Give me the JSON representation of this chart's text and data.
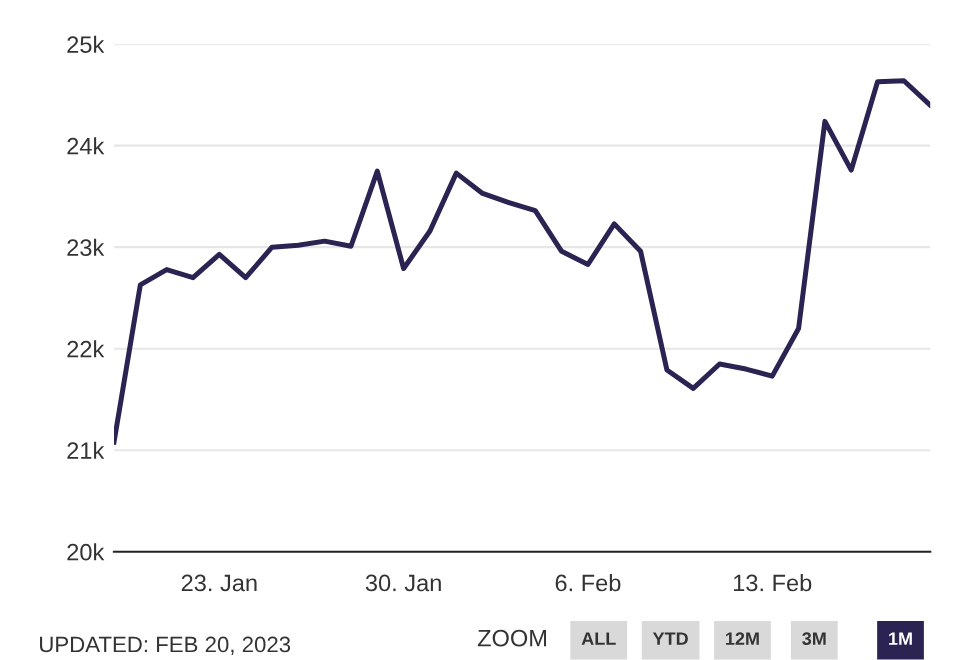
{
  "chart_data": {
    "type": "line",
    "x": [
      "2023-01-19",
      "2023-01-20",
      "2023-01-21",
      "2023-01-22",
      "2023-01-23",
      "2023-01-24",
      "2023-01-25",
      "2023-01-26",
      "2023-01-27",
      "2023-01-28",
      "2023-01-29",
      "2023-01-30",
      "2023-01-31",
      "2023-02-01",
      "2023-02-02",
      "2023-02-03",
      "2023-02-04",
      "2023-02-05",
      "2023-02-06",
      "2023-02-07",
      "2023-02-08",
      "2023-02-09",
      "2023-02-10",
      "2023-02-11",
      "2023-02-12",
      "2023-02-13",
      "2023-02-14",
      "2023-02-15",
      "2023-02-16",
      "2023-02-17",
      "2023-02-18",
      "2023-02-19"
    ],
    "series": [
      {
        "color": "#2b2452",
        "values": [
          21.08,
          22.63,
          22.78,
          22.7,
          22.93,
          22.7,
          23.0,
          23.02,
          23.06,
          23.01,
          23.75,
          22.79,
          23.16,
          23.73,
          23.53,
          23.44,
          23.36,
          22.96,
          22.83,
          23.23,
          22.96,
          21.79,
          21.61,
          21.85,
          21.8,
          21.73,
          22.2,
          24.24,
          23.76,
          24.63,
          24.64,
          24.4
        ]
      }
    ],
    "xlim": [
      "2023-01-19",
      "2023-02-19"
    ],
    "xticks": [
      {
        "value": "2023-01-23",
        "label": "23. Jan"
      },
      {
        "value": "2023-01-30",
        "label": "30. Jan"
      },
      {
        "value": "2023-02-06",
        "label": "6. Feb"
      },
      {
        "value": "2023-02-13",
        "label": "13. Feb"
      }
    ],
    "ylim": [
      20,
      25
    ],
    "yticks": [
      {
        "value": 20,
        "label": "20k"
      },
      {
        "value": 21,
        "label": "21k"
      },
      {
        "value": 22,
        "label": "22k"
      },
      {
        "value": 23,
        "label": "23k"
      },
      {
        "value": 24,
        "label": "24k"
      },
      {
        "value": 25,
        "label": "25k"
      }
    ],
    "grid": "y",
    "legend": false,
    "marker": "none",
    "line_style": "solid",
    "annotations": [
      "UPDATED: FEB 20, 2023",
      "ZOOM",
      "ALL",
      "YTD",
      "12M",
      "3M",
      "1M"
    ]
  }
}
